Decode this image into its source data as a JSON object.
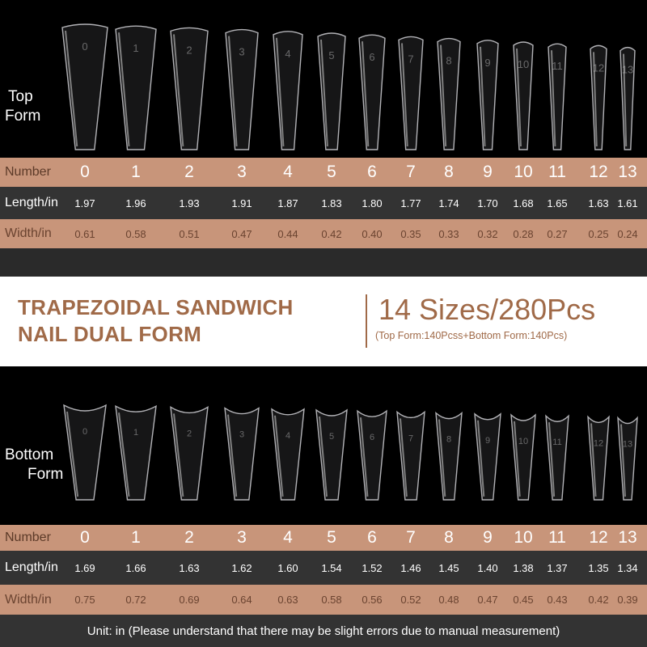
{
  "columns": [
    "0",
    "1",
    "2",
    "3",
    "4",
    "5",
    "6",
    "7",
    "8",
    "9",
    "10",
    "11",
    "12",
    "13"
  ],
  "top_form": {
    "label_line1": "Top",
    "label_line2": "Form",
    "number_label": "Number",
    "length_label": "Length/in",
    "width_label": "Width/in",
    "lengths": [
      "1.97",
      "1.96",
      "1.93",
      "1.91",
      "1.87",
      "1.83",
      "1.80",
      "1.77",
      "1.74",
      "1.70",
      "1.68",
      "1.65",
      "1.63",
      "1.61"
    ],
    "widths": [
      "0.61",
      "0.58",
      "0.51",
      "0.47",
      "0.44",
      "0.42",
      "0.40",
      "0.35",
      "0.33",
      "0.32",
      "0.28",
      "0.27",
      "0.25",
      "0.24"
    ]
  },
  "banner": {
    "title_line1": "TRAPEZOIDAL SANDWICH",
    "title_line2": "NAIL DUAL FORM",
    "sizes": "14 Sizes/280Pcs",
    "subtitle": "(Top Form:140Pcss+Bottom Form:140Pcs)"
  },
  "bottom_form": {
    "label_line1": "Bottom",
    "label_line2": "Form",
    "number_label": "Number",
    "length_label": "Length/in",
    "width_label": "Width/in",
    "lengths": [
      "1.69",
      "1.66",
      "1.63",
      "1.62",
      "1.60",
      "1.54",
      "1.52",
      "1.46",
      "1.45",
      "1.40",
      "1.38",
      "1.37",
      "1.35",
      "1.34"
    ],
    "widths": [
      "0.75",
      "0.72",
      "0.69",
      "0.64",
      "0.63",
      "0.58",
      "0.56",
      "0.52",
      "0.48",
      "0.47",
      "0.45",
      "0.43",
      "0.42",
      "0.39"
    ]
  },
  "footer": "Unit: in (Please understand that there may be slight errors due to manual measurement)",
  "colors": {
    "tan": "#c8957a",
    "brown": "#a06a48",
    "dark_row": "#333333"
  }
}
